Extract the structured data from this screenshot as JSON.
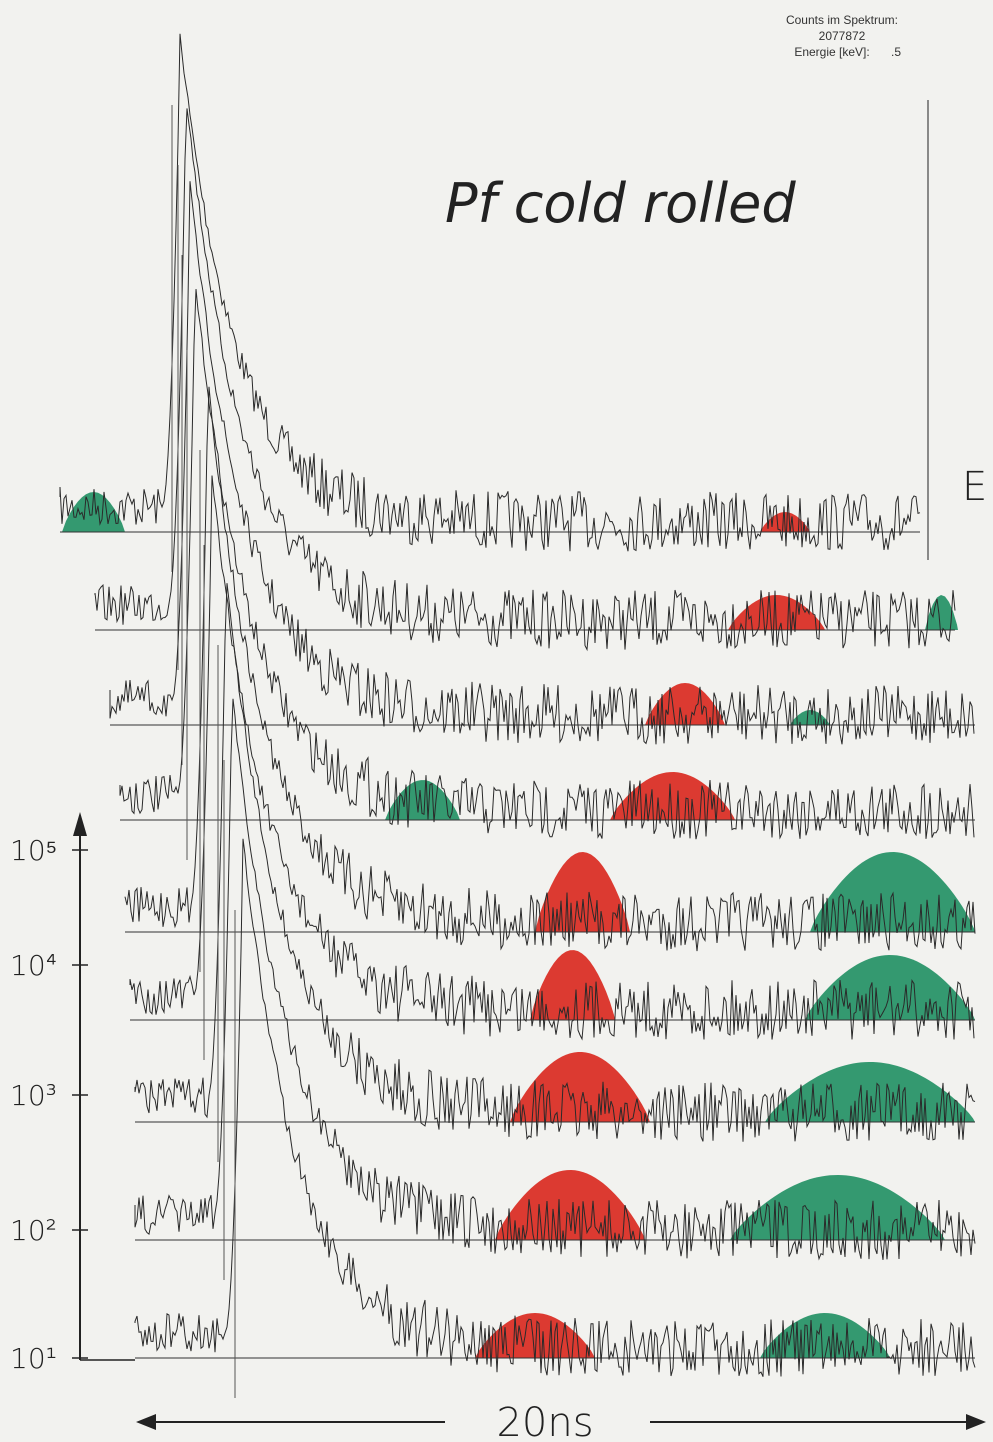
{
  "header": {
    "counts_label": "Counts im Spektrum:",
    "counts": "2077872",
    "energy_label": "Energie [keV]:",
    "energy": ".5"
  },
  "title": "Pf cold rolled",
  "side_label": "E",
  "axis": {
    "tick_labels": [
      "10⁵",
      "10⁴",
      "10³",
      "10²",
      "10¹"
    ],
    "scale_label": "20ns"
  }
}
